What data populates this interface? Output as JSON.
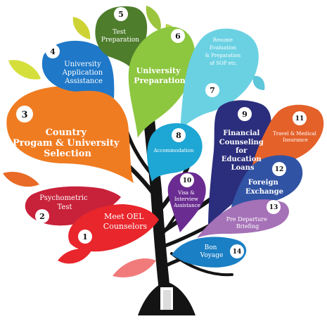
{
  "steps": [
    {
      "num": "1",
      "lines": [
        "Meet OEL",
        "Counselors"
      ]
    },
    {
      "num": "2",
      "lines": [
        "Psychometric",
        "Test"
      ]
    },
    {
      "num": "3",
      "lines": [
        "Country",
        "Progam & University",
        "Selection"
      ]
    },
    {
      "num": "4",
      "lines": [
        "University",
        "Application",
        "Assistance"
      ]
    },
    {
      "num": "5",
      "lines": [
        "Test",
        "Preparation"
      ]
    },
    {
      "num": "6",
      "lines": [
        "University",
        "Preparation"
      ]
    },
    {
      "num": "7",
      "lines": [
        "Resume",
        "Evaluation",
        "& Preparation",
        "of SOP etc."
      ]
    },
    {
      "num": "8",
      "lines": [
        "Accommodation"
      ]
    },
    {
      "num": "9",
      "lines": [
        "Financial",
        "Counseling",
        "for",
        "Education",
        "Loans"
      ]
    },
    {
      "num": "10",
      "lines": [
        "Visa &",
        "Interview",
        "Assistance"
      ]
    },
    {
      "num": "11",
      "lines": [
        "Travel & Medical",
        "Insurance"
      ]
    },
    {
      "num": "12",
      "lines": [
        "Foreign",
        "Exchange"
      ]
    },
    {
      "num": "13",
      "lines": [
        "Pre Departure",
        "Briefing"
      ]
    },
    {
      "num": "14",
      "lines": [
        "Bon",
        "Voyage"
      ]
    }
  ],
  "colors": {
    "trunk": "#141414",
    "leaf1": "#e8262c",
    "leaf2": "#c8213a",
    "leaf3": "#f07c22",
    "leaf4": "#1f78c8",
    "leaf5": "#4e7d2c",
    "leaf6": "#8dc63f",
    "leaf7": "#6ad1e3",
    "leaf8": "#1ea6d4",
    "leaf9": "#2b2e7c",
    "leaf10": "#6a2c91",
    "leaf11": "#e4612a",
    "leaf12": "#3153a4",
    "leaf13": "#a571b7",
    "leaf14": "#1a7fc4"
  }
}
